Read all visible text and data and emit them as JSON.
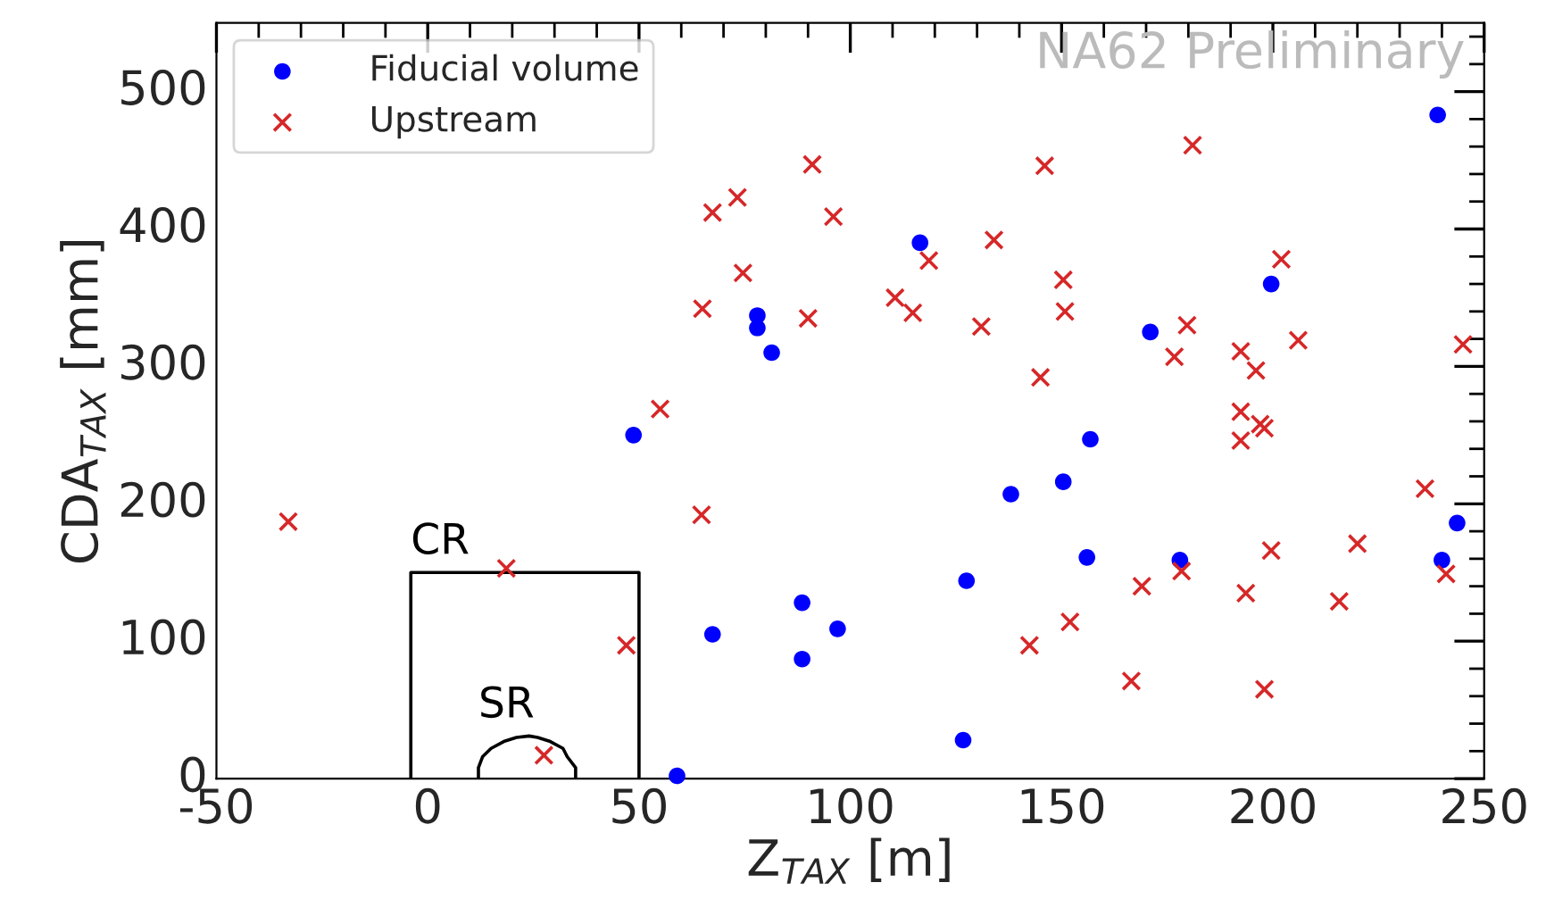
{
  "chart_data": {
    "type": "scatter",
    "xlabel": "Z$_{TAX}$ [m]",
    "ylabel": "CDA$_{TAX}$ [mm]",
    "xlim": [
      -50,
      250
    ],
    "ylim": [
      0,
      550
    ],
    "xticks": [
      -50,
      0,
      50,
      100,
      150,
      200,
      250
    ],
    "yticks": [
      0,
      100,
      200,
      300,
      400,
      500
    ],
    "legend": "top left",
    "annotations": [
      "NA62 Preliminary"
    ],
    "series": [
      {
        "name": "Fiducial volume",
        "marker": "circle",
        "color": "#0000ff",
        "x": [
          48.7,
          67.4,
          78,
          78,
          81.4,
          88.6,
          88.6,
          97,
          59,
          116.5,
          199.6,
          171,
          156.8,
          138,
          150.4,
          127.5,
          156,
          178,
          239,
          240,
          243.6,
          126.7
        ],
        "values": [
          250,
          105,
          337,
          328,
          310,
          128,
          87,
          109,
          2,
          390,
          360,
          325,
          247,
          207,
          216,
          144,
          161,
          159,
          483,
          159,
          186,
          28
        ]
      },
      {
        "name": "Upstream",
        "marker": "cross",
        "color": "#d62728",
        "x": [
          91,
          73.3,
          67.4,
          96,
          74.6,
          65,
          90,
          55,
          146,
          181,
          134,
          118.6,
          110.6,
          114.8,
          131,
          150.4,
          150.8,
          145,
          179.7,
          176.7,
          202,
          206,
          192.4,
          196,
          192.4,
          197,
          198,
          192.4,
          245,
          -33,
          18.6,
          47,
          27.5,
          64.8,
          236,
          199.6,
          220,
          169,
          178.4,
          193.6,
          215.7,
          241,
          152,
          142.4,
          166.5,
          198
        ],
        "values": [
          447,
          423,
          412,
          409,
          368,
          342,
          335,
          269,
          446,
          461,
          392,
          377,
          350,
          339,
          329,
          363,
          340,
          292,
          330,
          307,
          378,
          319,
          311,
          297,
          267,
          258,
          255,
          246,
          316,
          187,
          153,
          97,
          17,
          192,
          211,
          166,
          171,
          140,
          151,
          135,
          129,
          149,
          114,
          97,
          71,
          65
        ]
      },
      {
        "name": "CR",
        "type": "line",
        "color": "#000000",
        "x": [
          -4,
          -4,
          50,
          50
        ],
        "values": [
          0,
          150,
          150,
          0
        ]
      },
      {
        "name": "SR",
        "type": "line",
        "color": "#000000",
        "x": [
          35,
          35,
          33,
          32,
          29,
          26,
          24,
          21,
          18,
          15,
          13,
          12,
          12
        ],
        "values": [
          0,
          8,
          16,
          22,
          27,
          30,
          31,
          30,
          27,
          22,
          16,
          8,
          0
        ]
      }
    ]
  }
}
